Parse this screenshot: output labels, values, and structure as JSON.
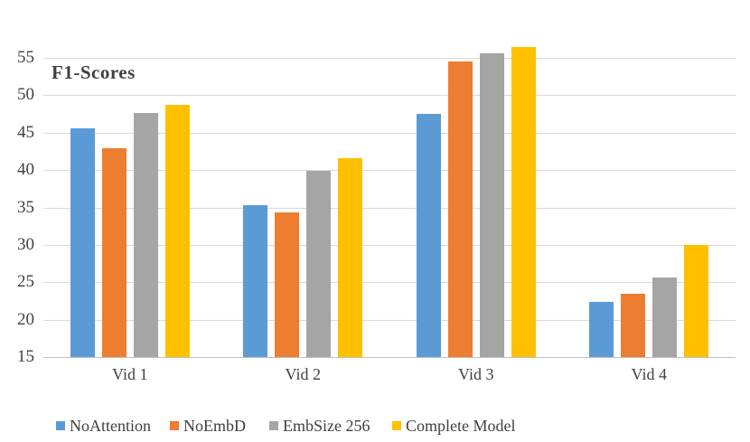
{
  "chart_data": {
    "type": "bar",
    "title": "F1-Scores",
    "categories": [
      "Vid 1",
      "Vid 2",
      "Vid 3",
      "Vid 4"
    ],
    "series": [
      {
        "name": "NoAttention",
        "color": "#5B9BD5",
        "values": [
          45.6,
          35.3,
          47.5,
          22.4
        ]
      },
      {
        "name": "NoEmbD",
        "color": "#ED7D31",
        "values": [
          42.9,
          34.3,
          54.5,
          23.5
        ]
      },
      {
        "name": "EmbSize 256",
        "color": "#A5A5A5",
        "values": [
          47.6,
          39.9,
          55.6,
          25.6
        ]
      },
      {
        "name": "Complete Model",
        "color": "#FFC000",
        "values": [
          48.7,
          41.6,
          56.4,
          30.0
        ]
      }
    ],
    "y_axis": {
      "min": 15,
      "max": 55,
      "step": 5,
      "ticks": [
        55,
        50,
        45,
        40,
        35,
        30,
        25,
        20,
        15
      ]
    },
    "grid": true,
    "legend_position": "bottom",
    "colors": {
      "gridline": "#D9D9D9",
      "axis_line": "#BFBFBF",
      "text": "#404040",
      "background": "#FFFFFF"
    }
  }
}
